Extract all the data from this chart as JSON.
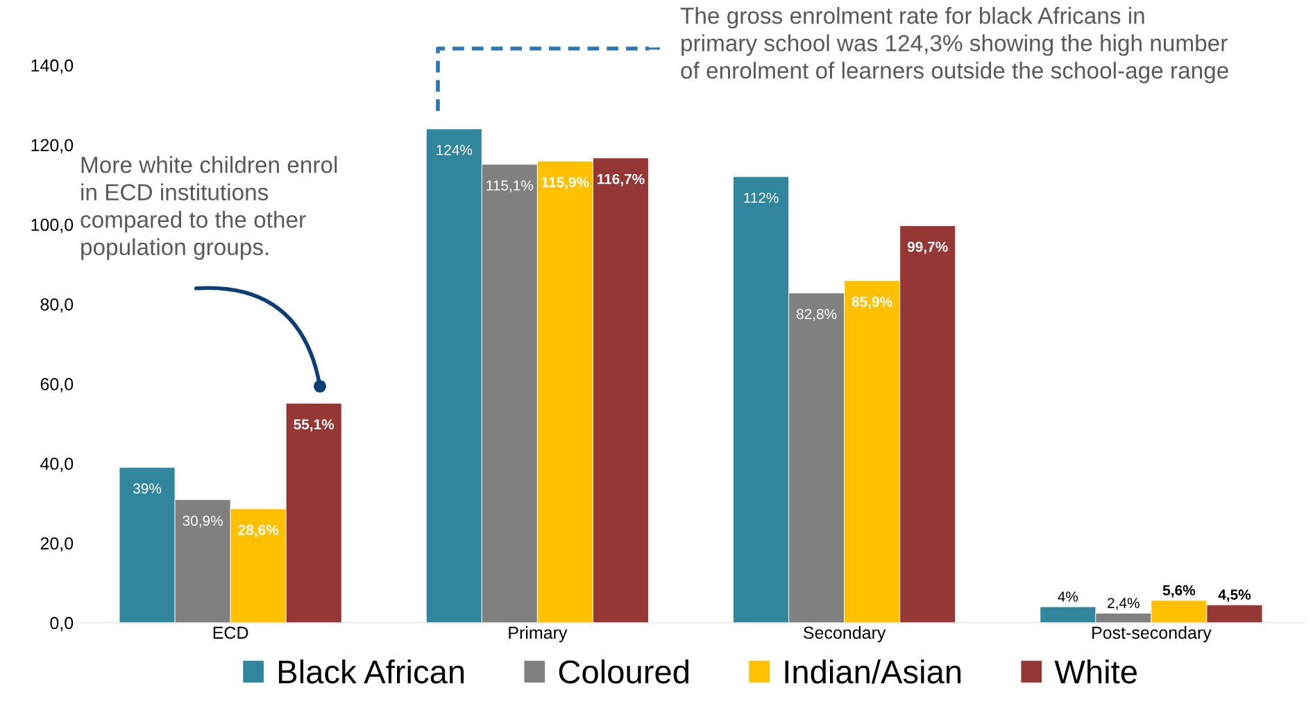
{
  "chart_data": {
    "type": "bar",
    "categories": [
      "ECD",
      "Primary",
      "Secondary",
      "Post-secondary"
    ],
    "series": [
      {
        "name": "Black African",
        "color": "#31859c",
        "values": [
          39,
          124,
          112,
          4
        ],
        "value_labels": [
          "39%",
          "124%",
          "112%",
          "4%"
        ]
      },
      {
        "name": "Coloured",
        "color": "#808080",
        "values": [
          30.9,
          115.1,
          82.8,
          2.4
        ],
        "value_labels": [
          "30,9%",
          "115,1%",
          "82,8%",
          "2,4%"
        ]
      },
      {
        "name": "Indian/Asian",
        "color": "#ffc000",
        "values": [
          28.6,
          115.9,
          85.9,
          5.6
        ],
        "value_labels": [
          "28,6%",
          "115,9%",
          "85,9%",
          "5,6%"
        ]
      },
      {
        "name": "White",
        "color": "#953735",
        "values": [
          55.1,
          116.7,
          99.7,
          4.5
        ],
        "value_labels": [
          "55,1%",
          "116,7%",
          "99,7%",
          "4,5%"
        ]
      }
    ],
    "ylim": [
      0,
      140
    ],
    "yticks": [
      {
        "value": 0,
        "label": "0,0"
      },
      {
        "value": 20,
        "label": "20,0"
      },
      {
        "value": 40,
        "label": "40,0"
      },
      {
        "value": 60,
        "label": "60,0"
      },
      {
        "value": 80,
        "label": "80,0"
      },
      {
        "value": 100,
        "label": "100,0"
      },
      {
        "value": 120,
        "label": "120,0"
      },
      {
        "value": 140,
        "label": "140,0"
      }
    ],
    "grid": false,
    "legend": "bottom",
    "annotations": [
      "More white children enrol\nin ECD institutions\ncompared to the other\npopulation groups.",
      "The gross enrolment rate for black Africans in\nprimary school was 124,3% showing the high number\nof enrolment of learners outside the school-age range"
    ]
  }
}
